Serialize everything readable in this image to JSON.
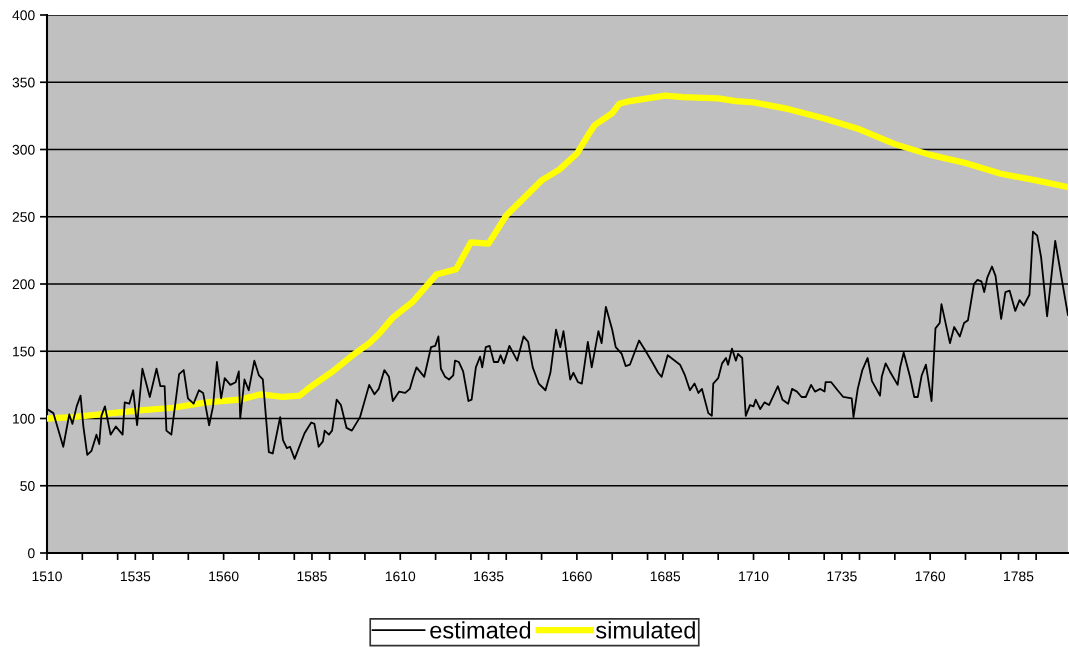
{
  "chart_data": {
    "type": "line",
    "x": [
      1510,
      1511.8,
      1514.6,
      1516.3,
      1517.2,
      1518.4,
      1519.5,
      1520.3,
      1521.4,
      1522.6,
      1524,
      1524.8,
      1525.4,
      1526.4,
      1528,
      1529.5,
      1531.4,
      1532,
      1533.3,
      1534.4,
      1535.5,
      1537,
      1539.1,
      1541,
      1542.1,
      1543.3,
      1543.8,
      1545.2,
      1547.4,
      1548.7,
      1549.9,
      1551.5,
      1553,
      1554.2,
      1555.9,
      1557,
      1558.1,
      1559.3,
      1560.3,
      1561.9,
      1563.4,
      1564.3,
      1564.7,
      1565.9,
      1567.1,
      1568.7,
      1570,
      1571.1,
      1572.8,
      1573.9,
      1576,
      1576.8,
      1577.9,
      1578.8,
      1580.1,
      1582.9,
      1584.8,
      1585.7,
      1586.9,
      1588.1,
      1588.6,
      1589.8,
      1590.7,
      1592,
      1593.2,
      1594.8,
      1596.3,
      1598.6,
      1601.2,
      1602.7,
      1603.9,
      1605.5,
      1606.8,
      1607.9,
      1609.7,
      1611.4,
      1612.7,
      1613.7,
      1614.6,
      1616.8,
      1618.7,
      1619.9,
      1620.8,
      1621.5,
      1622.7,
      1623.8,
      1625,
      1625.5,
      1626.6,
      1627.8,
      1629.3,
      1630.2,
      1631.4,
      1632.6,
      1633.2,
      1634.2,
      1635.3,
      1636.5,
      1637.7,
      1638.4,
      1639.3,
      1640.9,
      1643.1,
      1644.9,
      1646.2,
      1647.5,
      1649.2,
      1651.1,
      1652.5,
      1654.1,
      1655.3,
      1656.2,
      1658.1,
      1659,
      1660.3,
      1661.4,
      1663.1,
      1664.2,
      1666.1,
      1667,
      1668.2,
      1670,
      1671,
      1672.7,
      1673.8,
      1675,
      1677.6,
      1679.5,
      1681.3,
      1683,
      1684,
      1685.7,
      1689.2,
      1690.6,
      1692,
      1693.3,
      1694.4,
      1695.4,
      1697.2,
      1698.2,
      1698.6,
      1700,
      1701.1,
      1702.2,
      1702.8,
      1703.9,
      1705,
      1705.6,
      1706.8,
      1707.8,
      1709,
      1710,
      1710.6,
      1711.9,
      1713.1,
      1714.4,
      1716.9,
      1718.2,
      1719.8,
      1720.9,
      1722.3,
      1723.6,
      1724.8,
      1726.3,
      1727.4,
      1728.9,
      1730.1,
      1730.4,
      1732,
      1733.8,
      1735.4,
      1737.8,
      1738.3,
      1739.5,
      1740.8,
      1742.3,
      1743.5,
      1745.8,
      1746.3,
      1747.4,
      1748.6,
      1750.8,
      1751.5,
      1752.5,
      1754.3,
      1755.5,
      1756.5,
      1757.6,
      1758.8,
      1760.4,
      1761.5,
      1762.7,
      1763.2,
      1765.6,
      1766.8,
      1768.4,
      1769.6,
      1770.7,
      1772.4,
      1773.4,
      1774.5,
      1775.3,
      1776.2,
      1777.5,
      1778.5,
      1780.1,
      1781.3,
      1782.5,
      1784.1,
      1785.3,
      1786.5,
      1788.1,
      1789.1,
      1790.3,
      1791.4,
      1793.1,
      1795.4,
      1799
    ],
    "series": [
      {
        "name": "estimated",
        "color": "#000000",
        "values": [
          107,
          104,
          79,
          103,
          96,
          109,
          117,
          94,
          73,
          76,
          88,
          81,
          102,
          109,
          88,
          94,
          88,
          112,
          111,
          121,
          95,
          137,
          116,
          137,
          124,
          124,
          91,
          88,
          133,
          136,
          115,
          111,
          121,
          119,
          95,
          109,
          142,
          115,
          130,
          125,
          127,
          135,
          100,
          129,
          121,
          143,
          132,
          129,
          75,
          74,
          101,
          84,
          78,
          79,
          70,
          89,
          97,
          96,
          79,
          83,
          91,
          88,
          91,
          114,
          110,
          93,
          91,
          101,
          125,
          118,
          122,
          136,
          131,
          113,
          120,
          119,
          122,
          131,
          138,
          131,
          153,
          154,
          161,
          137,
          131,
          129,
          132,
          143,
          142,
          135,
          113,
          114,
          138,
          146,
          138,
          153,
          154,
          142,
          142,
          147,
          141,
          154,
          143,
          161,
          157,
          138,
          126,
          121,
          134,
          166,
          153,
          165,
          129,
          134,
          127,
          126,
          157,
          138,
          165,
          156,
          183,
          166,
          153,
          148,
          139,
          140,
          158,
          150,
          142,
          134,
          131,
          147,
          140,
          132,
          121,
          126,
          119,
          122,
          104,
          102,
          126,
          130,
          141,
          145,
          140,
          152,
          143,
          148,
          145,
          102,
          110,
          109,
          114,
          107,
          112,
          110,
          124,
          114,
          111,
          122,
          120,
          116,
          116,
          125,
          120,
          122,
          120,
          127,
          127,
          121,
          116,
          115,
          101,
          122,
          136,
          145,
          128,
          117,
          131,
          141,
          135,
          125,
          138,
          149,
          131,
          116,
          116,
          132,
          140,
          113,
          167,
          171,
          185,
          156,
          168,
          161,
          171,
          173,
          200,
          203,
          202,
          194,
          205,
          213,
          206,
          174,
          194,
          195,
          180,
          188,
          184,
          192,
          239,
          236,
          220,
          176,
          232,
          177
        ]
      },
      {
        "name": "simulated",
        "color": "#ffff00",
        "x": [
          1510,
          1517.2,
          1525,
          1536.3,
          1545.7,
          1555.1,
          1564.5,
          1570.6,
          1576.8,
          1581.5,
          1584.3,
          1590.9,
          1596.5,
          1601.2,
          1604,
          1607.9,
          1613.6,
          1620.2,
          1625.8,
          1630,
          1635,
          1640,
          1650,
          1655,
          1660,
          1663,
          1665,
          1670,
          1672,
          1675,
          1680,
          1685,
          1690,
          1700,
          1705,
          1710,
          1720,
          1730,
          1740,
          1750,
          1760,
          1770,
          1780,
          1790,
          1799
        ],
        "values": [
          100,
          101,
          103,
          106,
          108,
          112,
          114,
          118,
          116,
          117,
          123,
          135,
          147,
          156,
          163,
          175,
          187,
          207,
          211,
          231,
          230,
          251,
          277,
          285,
          297,
          310,
          318,
          327,
          334,
          336,
          338,
          340,
          339,
          338,
          336,
          335,
          330,
          323,
          315,
          304,
          296,
          290,
          282,
          277,
          272
        ]
      }
    ],
    "xlim": [
      1510,
      1799
    ],
    "xticks": [
      1510,
      {
        "value": 1520,
        "label": null
      },
      {
        "value": 1530,
        "label": null
      },
      1535,
      {
        "value": 1540,
        "label": null
      },
      {
        "value": 1550,
        "label": null
      },
      1560,
      {
        "value": 1570,
        "label": null
      },
      {
        "value": 1580,
        "label": null
      },
      1585,
      {
        "value": 1590,
        "label": null
      },
      {
        "value": 1600,
        "label": null
      },
      1610,
      {
        "value": 1620,
        "label": null
      },
      {
        "value": 1630,
        "label": null
      },
      1635,
      {
        "value": 1640,
        "label": null
      },
      {
        "value": 1650,
        "label": null
      },
      1660,
      {
        "value": 1670,
        "label": null
      },
      {
        "value": 1680,
        "label": null
      },
      1685,
      {
        "value": 1690,
        "label": null
      },
      {
        "value": 1700,
        "label": null
      },
      1710,
      {
        "value": 1720,
        "label": null
      },
      {
        "value": 1730,
        "label": null
      },
      1735,
      {
        "value": 1740,
        "label": null
      },
      {
        "value": 1750,
        "label": null
      },
      1760,
      {
        "value": 1770,
        "label": null
      },
      {
        "value": 1780,
        "label": null
      },
      1785,
      {
        "value": 1790,
        "label": null
      }
    ],
    "ylim": [
      0,
      400
    ],
    "yticks": [
      0,
      50,
      100,
      150,
      200,
      250,
      300,
      350,
      400
    ],
    "grid": "y",
    "legend": "bottom",
    "marker": "none",
    "line_style": "solid"
  }
}
